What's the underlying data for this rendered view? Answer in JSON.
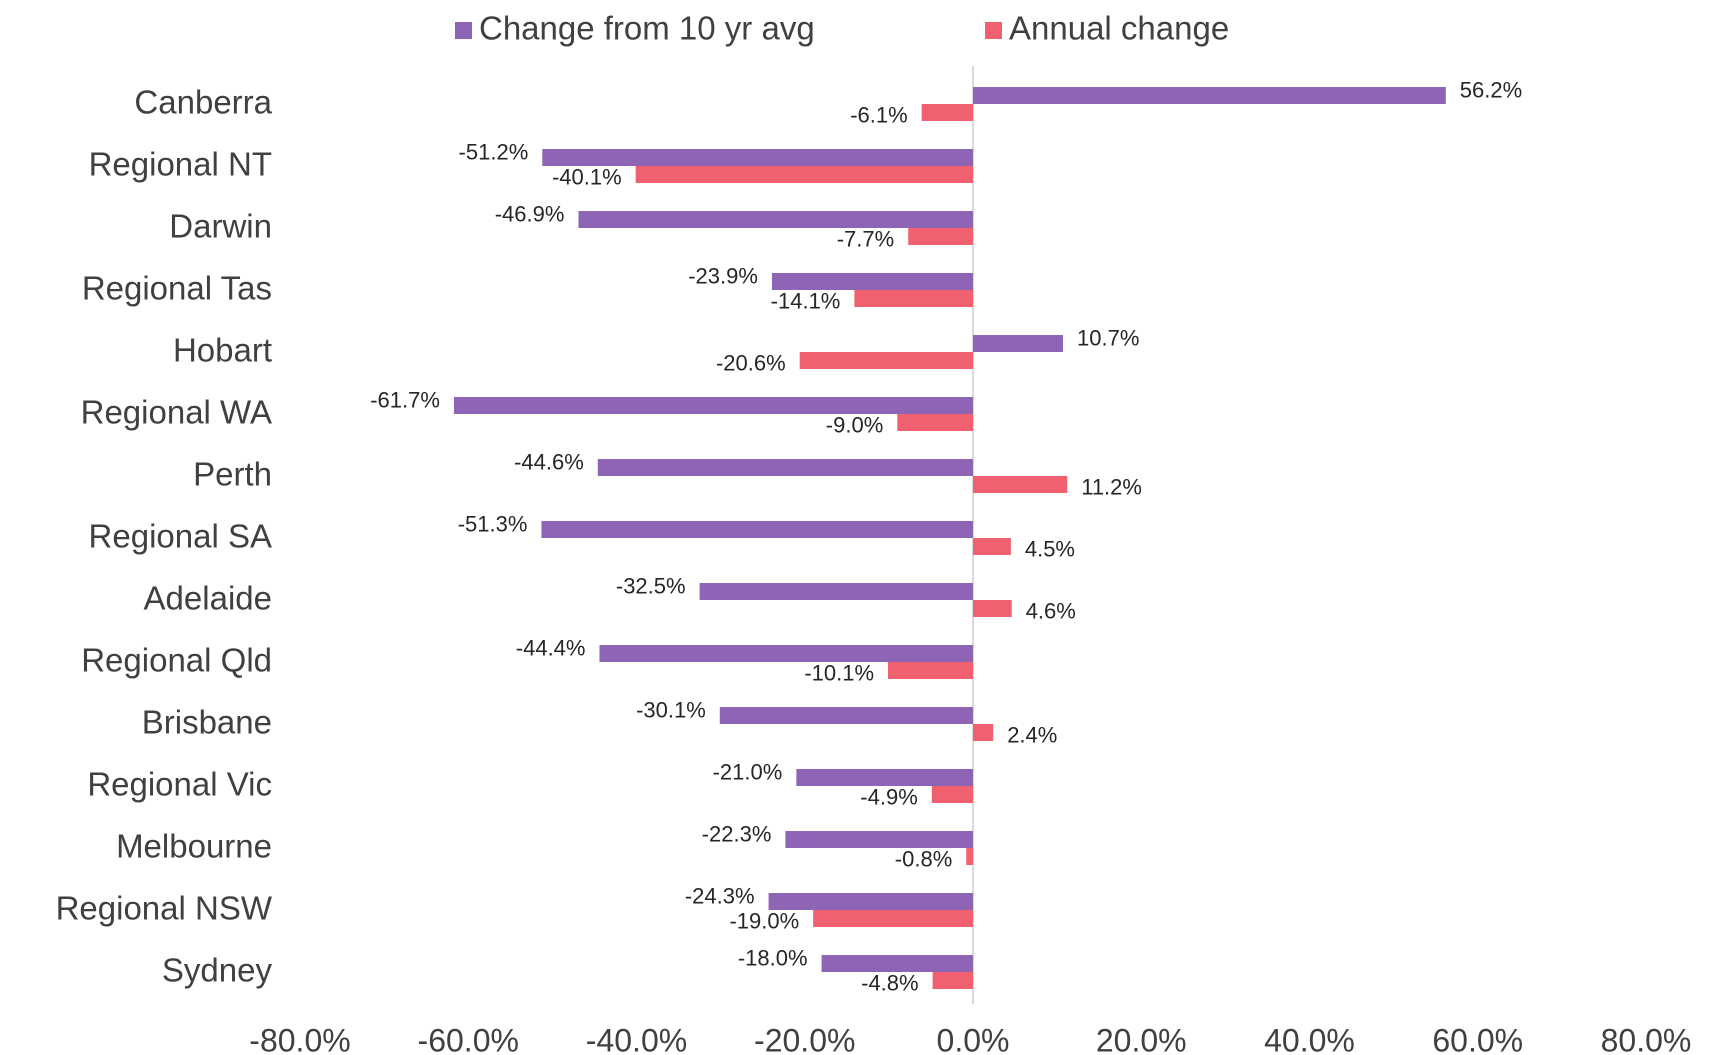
{
  "chart_data": {
    "type": "hbar",
    "categories": [
      "Canberra",
      "Regional NT",
      "Darwin",
      "Regional Tas",
      "Hobart",
      "Regional WA",
      "Perth",
      "Regional SA",
      "Adelaide",
      "Regional Qld",
      "Brisbane",
      "Regional Vic",
      "Melbourne",
      "Regional NSW",
      "Sydney"
    ],
    "series": [
      {
        "name": "Change from 10 yr avg",
        "color": "#8e64b4",
        "values": [
          56.2,
          -51.2,
          -46.9,
          -23.9,
          10.7,
          -61.7,
          -44.6,
          -51.3,
          -32.5,
          -44.4,
          -30.1,
          -21.0,
          -22.3,
          -24.3,
          -18.0
        ],
        "value_labels": [
          "56.2%",
          "-51.2%",
          "-46.9%",
          "-23.9%",
          "10.7%",
          "-61.7%",
          "-44.6%",
          "-51.3%",
          "-32.5%",
          "-44.4%",
          "-30.1%",
          "-21.0%",
          "-22.3%",
          "-24.3%",
          "-18.0%"
        ]
      },
      {
        "name": "Annual change",
        "color": "#f0606e",
        "values": [
          -6.1,
          -40.1,
          -7.7,
          -14.1,
          -20.6,
          -9.0,
          11.2,
          4.5,
          4.6,
          -10.1,
          2.4,
          -4.9,
          -0.8,
          -19.0,
          -4.8
        ],
        "value_labels": [
          "-6.1%",
          "-40.1%",
          "-7.7%",
          "-14.1%",
          "-20.6%",
          "-9.0%",
          "11.2%",
          "4.5%",
          "4.6%",
          "-10.1%",
          "2.4%",
          "-4.9%",
          "-0.8%",
          "-19.0%",
          "-4.8%"
        ]
      }
    ],
    "xlim": [
      -80,
      80
    ],
    "xticks": [
      {
        "value": -80,
        "label": "-80.0%"
      },
      {
        "value": -60,
        "label": "-60.0%"
      },
      {
        "value": -40,
        "label": "-40.0%"
      },
      {
        "value": -20,
        "label": "-20.0%"
      },
      {
        "value": 0,
        "label": "0.0%"
      },
      {
        "value": 20,
        "label": "20.0%"
      },
      {
        "value": 40,
        "label": "40.0%"
      },
      {
        "value": 60,
        "label": "60.0%"
      },
      {
        "value": 80,
        "label": "80.0%"
      }
    ],
    "legend": "top",
    "grid": false
  }
}
